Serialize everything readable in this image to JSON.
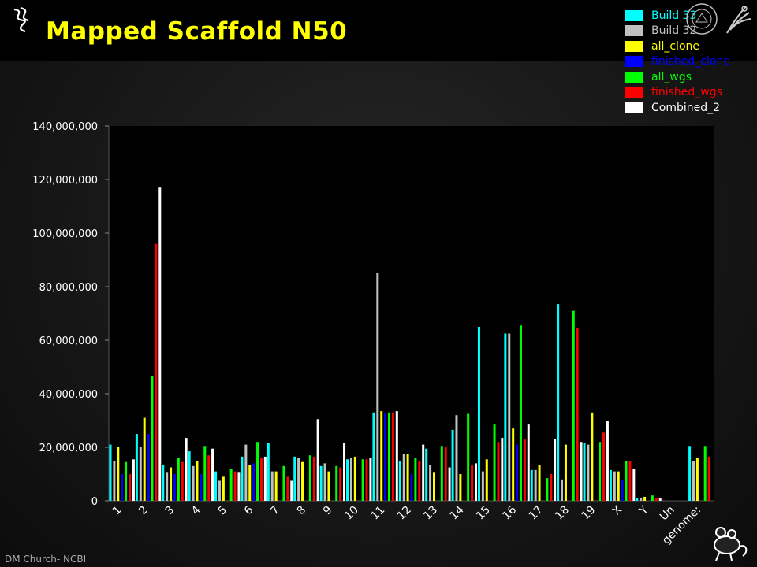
{
  "header": {
    "title": "Mapped Scaffold N50"
  },
  "footer": {
    "credit": "DM Church- NCBI"
  },
  "legend": [
    {
      "label": "Build 33",
      "color": "#00ffff"
    },
    {
      "label": "Build 32",
      "color": "#c0c0c0"
    },
    {
      "label": "all_clone",
      "color": "#ffff00"
    },
    {
      "label": "finished_clone",
      "color": "#0000ff"
    },
    {
      "label": "all_wgs",
      "color": "#00ff00"
    },
    {
      "label": "finished_wgs",
      "color": "#ff0000"
    },
    {
      "label": "Combined_2",
      "color": "#ffffff"
    }
  ],
  "chart_data": {
    "type": "bar",
    "title": "Mapped Scaffold N50",
    "ylim": [
      0,
      140000000
    ],
    "yticks": [
      0,
      20000000,
      40000000,
      60000000,
      80000000,
      100000000,
      120000000,
      140000000
    ],
    "ytick_labels": [
      "0",
      "20,000,000",
      "40,000,000",
      "60,000,000",
      "80,000,000",
      "100,000,000",
      "120,000,000",
      "140,000,000"
    ],
    "categories": [
      "1",
      "2",
      "3",
      "4",
      "5",
      "6",
      "7",
      "8",
      "9",
      "10",
      "11",
      "12",
      "13",
      "14",
      "15",
      "16",
      "17",
      "18",
      "19",
      "X",
      "Y",
      "Un",
      "genome:"
    ],
    "legend_position": "top-right",
    "grid": false,
    "series": [
      {
        "name": "Build 33",
        "color": "#00ffff",
        "values": [
          21000000,
          25000000,
          13500000,
          18500000,
          11000000,
          16500000,
          21500000,
          16500000,
          13000000,
          15500000,
          33000000,
          15000000,
          19500000,
          26500000,
          65000000,
          62500000,
          11500000,
          73500000,
          21500000,
          11500000,
          1000000,
          0,
          20500000
        ]
      },
      {
        "name": "Build 32",
        "color": "#c0c0c0",
        "values": [
          15000000,
          20000000,
          10500000,
          13000000,
          7500000,
          21000000,
          11000000,
          16000000,
          14000000,
          16000000,
          85000000,
          17500000,
          13500000,
          32000000,
          11000000,
          62500000,
          11500000,
          8000000,
          21000000,
          11000000,
          1000000,
          0,
          15000000
        ]
      },
      {
        "name": "all_clone",
        "color": "#ffff00",
        "values": [
          20000000,
          31000000,
          12500000,
          15000000,
          9000000,
          13500000,
          11000000,
          14500000,
          11000000,
          16500000,
          33500000,
          17500000,
          10500000,
          10000000,
          15500000,
          27000000,
          13500000,
          21000000,
          33000000,
          11000000,
          1500000,
          0,
          16000000
        ]
      },
      {
        "name": "finished_clone",
        "color": "#0000ff",
        "values": [
          10000000,
          25000000,
          10000000,
          10000000,
          0,
          14000000,
          0,
          0,
          0,
          0,
          33000000,
          10000000,
          0,
          0,
          0,
          21000000,
          0,
          0,
          0,
          8000000,
          0,
          0,
          0
        ]
      },
      {
        "name": "all_wgs",
        "color": "#00ff00",
        "values": [
          14500000,
          46500000,
          16000000,
          20500000,
          12000000,
          22000000,
          13000000,
          17000000,
          13000000,
          15500000,
          33000000,
          16000000,
          20500000,
          32500000,
          28500000,
          65500000,
          8500000,
          71000000,
          22000000,
          15000000,
          2000000,
          0,
          20500000
        ]
      },
      {
        "name": "finished_wgs",
        "color": "#ff0000",
        "values": [
          10000000,
          96000000,
          14500000,
          17000000,
          11000000,
          16000000,
          9000000,
          16500000,
          12500000,
          15500000,
          33000000,
          15000000,
          20000000,
          13500000,
          22000000,
          23000000,
          10000000,
          64500000,
          25500000,
          15000000,
          1000000,
          0,
          16500000
        ]
      },
      {
        "name": "Combined_2",
        "color": "#ffffff",
        "values": [
          15500000,
          117000000,
          23500000,
          19500000,
          10500000,
          16500000,
          7500000,
          30500000,
          21500000,
          16000000,
          33500000,
          21000000,
          12500000,
          14000000,
          23500000,
          28500000,
          23000000,
          22000000,
          30000000,
          12000000,
          1000000,
          0,
          0
        ]
      }
    ]
  }
}
